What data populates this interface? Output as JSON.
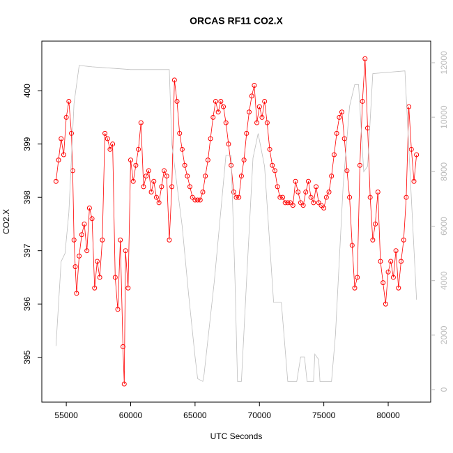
{
  "chart_data": {
    "type": "scatter",
    "title": "ORCAS RF11 CO2.X",
    "x_label": "UTC Seconds",
    "y_label": "CO2.X",
    "xlim": [
      53100,
      83300
    ],
    "xticks": [
      55000,
      60000,
      65000,
      70000,
      75000,
      80000
    ],
    "ylim": [
      394.16,
      400.93
    ],
    "yticks": [
      395,
      396,
      397,
      398,
      399,
      400
    ],
    "y2lim": [
      -460,
      12793
    ],
    "y2ticks": [
      0,
      2000,
      4000,
      6000,
      8000,
      10000,
      12000
    ],
    "series": [
      {
        "color": "#ff0000",
        "mode": "points-lines",
        "x": [
          54200,
          54400,
          54600,
          54800,
          55000,
          55200,
          55400,
          55500,
          55600,
          55700,
          55800,
          56000,
          56200,
          56400,
          56600,
          56800,
          57000,
          57200,
          57400,
          57600,
          57800,
          58000,
          58200,
          58400,
          58600,
          58800,
          59000,
          59200,
          59400,
          59500,
          59600,
          59800,
          60000,
          60200,
          60400,
          60600,
          60800,
          61000,
          61200,
          61400,
          61600,
          61800,
          62000,
          62200,
          62400,
          62600,
          62800,
          63000,
          63200,
          63400,
          63600,
          63800,
          64000,
          64200,
          64400,
          64600,
          64800,
          65000,
          65200,
          65400,
          65600,
          65800,
          66000,
          66200,
          66400,
          66600,
          66800,
          67000,
          67200,
          67400,
          67600,
          67800,
          68000,
          68200,
          68400,
          68600,
          68800,
          69000,
          69200,
          69400,
          69600,
          69800,
          70000,
          70200,
          70400,
          70600,
          70800,
          71000,
          71200,
          71400,
          71600,
          71800,
          72000,
          72200,
          72400,
          72600,
          72800,
          73000,
          73200,
          73400,
          73600,
          73800,
          74000,
          74200,
          74400,
          74600,
          74800,
          75000,
          75200,
          75400,
          75600,
          75800,
          76000,
          76200,
          76400,
          76600,
          76800,
          77000,
          77200,
          77400,
          77600,
          77800,
          78000,
          78200,
          78400,
          78600,
          78800,
          79000,
          79200,
          79400,
          79600,
          79800,
          80000,
          80200,
          80400,
          80600,
          80800,
          81000,
          81200,
          81400,
          81600,
          81800,
          82000,
          82200
        ],
        "values": [
          398.3,
          398.7,
          399.1,
          398.8,
          399.5,
          399.8,
          399.2,
          398.5,
          397.2,
          396.7,
          396.2,
          396.9,
          397.3,
          397.5,
          397.0,
          397.8,
          397.6,
          396.3,
          396.8,
          396.5,
          397.2,
          399.2,
          399.1,
          398.9,
          399.0,
          396.5,
          395.9,
          397.2,
          395.2,
          394.5,
          397.0,
          396.3,
          398.7,
          398.3,
          398.6,
          398.9,
          399.4,
          398.2,
          398.4,
          398.5,
          398.1,
          398.3,
          398.0,
          397.9,
          398.2,
          398.5,
          398.4,
          397.2,
          398.2,
          400.2,
          399.8,
          399.2,
          398.9,
          398.6,
          398.4,
          398.2,
          398.0,
          397.95,
          397.95,
          397.95,
          398.1,
          398.4,
          398.7,
          399.1,
          399.5,
          399.8,
          399.6,
          399.8,
          399.7,
          399.4,
          399.0,
          398.6,
          398.1,
          398.0,
          398.0,
          398.4,
          398.7,
          399.2,
          399.6,
          399.9,
          400.1,
          399.4,
          399.7,
          399.5,
          399.8,
          399.4,
          398.9,
          398.6,
          398.5,
          398.2,
          398.0,
          398.0,
          397.9,
          397.9,
          397.9,
          397.85,
          398.3,
          398.1,
          397.9,
          397.85,
          398.1,
          398.3,
          398.0,
          397.9,
          398.2,
          397.9,
          397.85,
          397.8,
          398.0,
          398.1,
          398.4,
          398.8,
          399.2,
          399.5,
          399.6,
          399.1,
          398.5,
          398.0,
          397.1,
          396.3,
          396.5,
          398.6,
          399.8,
          400.6,
          399.3,
          398.0,
          397.2,
          397.5,
          398.1,
          396.8,
          396.4,
          396.0,
          396.6,
          396.8,
          396.5,
          397.0,
          396.3,
          396.8,
          397.2,
          398.0,
          399.7,
          398.9,
          398.3,
          398.8
        ]
      },
      {
        "color": "#bebebe",
        "mode": "line",
        "axis": "y2",
        "x": [
          54200,
          54600,
          54900,
          55200,
          55600,
          56000,
          57000,
          58500,
          60000,
          63000,
          63200,
          64000,
          64500,
          65000,
          65200,
          65600,
          65700,
          66500,
          67400,
          67800,
          68100,
          68300,
          68600,
          69000,
          69500,
          69900,
          70400,
          71100,
          71700,
          72200,
          72900,
          73200,
          73500,
          73700,
          74200,
          74300,
          74600,
          74700,
          75600,
          75900,
          76500,
          77000,
          77400,
          77700,
          78100,
          78400,
          78800,
          81300,
          81800,
          82200
        ],
        "values": [
          1600,
          4700,
          5000,
          6500,
          10500,
          11900,
          11850,
          11800,
          11750,
          11750,
          9000,
          6000,
          3500,
          1200,
          400,
          300,
          550,
          4000,
          8600,
          8600,
          4000,
          300,
          300,
          4000,
          8500,
          9400,
          8200,
          3200,
          3200,
          300,
          300,
          1200,
          1200,
          300,
          300,
          1300,
          1100,
          300,
          300,
          2000,
          7500,
          10400,
          11200,
          11200,
          8000,
          8200,
          11600,
          11700,
          7000,
          3300
        ]
      }
    ]
  }
}
